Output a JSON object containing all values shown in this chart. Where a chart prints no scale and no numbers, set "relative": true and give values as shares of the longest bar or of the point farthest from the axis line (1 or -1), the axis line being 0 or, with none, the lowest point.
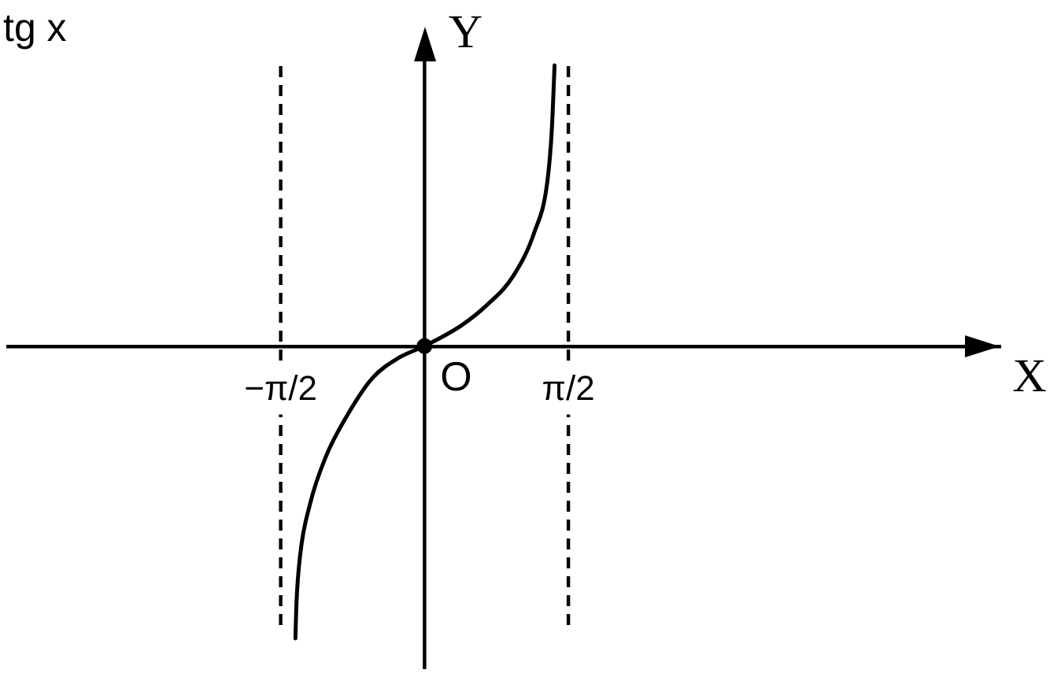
{
  "chart_data": {
    "type": "line",
    "title": "tg x",
    "xlabel": "X",
    "ylabel": "Y",
    "relative": true,
    "line_style": "solid",
    "xlim": [
      -4.55,
      6.28
    ],
    "xticks": [
      {
        "value": -1.5708,
        "label": "−π/2"
      },
      {
        "value": 1.5708,
        "label": "π/2"
      }
    ],
    "series": [
      {
        "color": "#000000",
        "marker": "none",
        "x": [
          -1.41,
          -1.4,
          -1.36,
          -1.25,
          -1.08,
          -0.85,
          -0.57,
          -0.28,
          0,
          0.4,
          0.68,
          0.97,
          1.2,
          1.34,
          1.39,
          1.42
        ],
        "values": [
          -1,
          -0.89,
          -0.72,
          -0.54,
          -0.38,
          -0.24,
          -0.11,
          -0.04,
          0,
          0.07,
          0.14,
          0.24,
          0.39,
          0.56,
          0.74,
          0.96
        ]
      },
      {
        "type": "scatter",
        "color": "#000000",
        "marker": "circle",
        "x": [
          0
        ],
        "values": [
          0
        ]
      }
    ],
    "ref_lines": [
      {
        "axis": "x",
        "value": -1.5708,
        "line_style": "dashed",
        "color": "#000000"
      },
      {
        "axis": "x",
        "value": 1.5708,
        "line_style": "dashed",
        "color": "#000000"
      }
    ],
    "annotations": [
      {
        "text": "O",
        "x": 0,
        "y": 0
      }
    ]
  }
}
